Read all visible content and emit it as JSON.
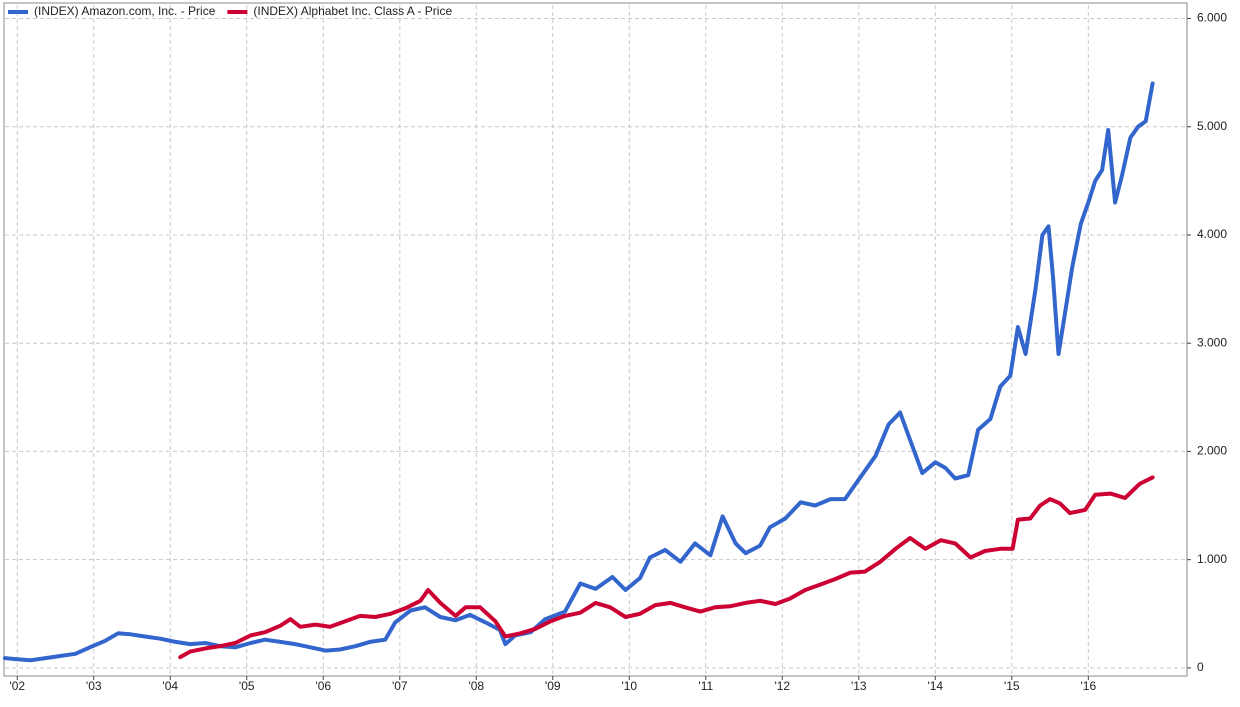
{
  "chart_data": {
    "type": "line",
    "xlim": [
      2001.84,
      2017.29
    ],
    "xticks": [
      {
        "value": 2002,
        "label": "'02"
      },
      {
        "value": 2003,
        "label": "'03"
      },
      {
        "value": 2004,
        "label": "'04"
      },
      {
        "value": 2005,
        "label": "'05"
      },
      {
        "value": 2006,
        "label": "'06"
      },
      {
        "value": 2007,
        "label": "'07"
      },
      {
        "value": 2008,
        "label": "'08"
      },
      {
        "value": 2009,
        "label": "'09"
      },
      {
        "value": 2010,
        "label": "'10"
      },
      {
        "value": 2011,
        "label": "'11"
      },
      {
        "value": 2012,
        "label": "'12"
      },
      {
        "value": 2013,
        "label": "'13"
      },
      {
        "value": 2014,
        "label": "'14"
      },
      {
        "value": 2015,
        "label": "'15"
      },
      {
        "value": 2016,
        "label": "'16"
      }
    ],
    "ylim": [
      -75,
      6125
    ],
    "yticks": [
      0,
      {
        "value": 1000,
        "label": "1.000"
      },
      {
        "value": 2000,
        "label": "2.000"
      },
      {
        "value": 3000,
        "label": "3.000"
      },
      {
        "value": 4000,
        "label": "4.000"
      },
      {
        "value": 5000,
        "label": "5.000"
      },
      {
        "value": 6000,
        "label": "6.000"
      }
    ],
    "grid": true,
    "legend": "top-left",
    "series": [
      {
        "name": "(INDEX) Amazon.com, Inc. - Price",
        "color": "#3366cc",
        "x": [
          2001.84,
          2002.0,
          2002.17,
          2002.37,
          2002.56,
          2002.76,
          2002.95,
          2003.15,
          2003.32,
          2003.48,
          2003.67,
          2003.87,
          2004.07,
          2004.26,
          2004.46,
          2004.65,
          2004.85,
          2005.05,
          2005.24,
          2005.44,
          2005.63,
          2005.83,
          2006.03,
          2006.22,
          2006.42,
          2006.61,
          2006.81,
          2006.94,
          2007.14,
          2007.33,
          2007.53,
          2007.73,
          2007.92,
          2008.12,
          2008.31,
          2008.38,
          2008.51,
          2008.71,
          2008.9,
          2009.16,
          2009.36,
          2009.56,
          2009.78,
          2009.95,
          2010.14,
          2010.27,
          2010.47,
          2010.67,
          2010.86,
          2011.06,
          2011.22,
          2011.39,
          2011.52,
          2011.71,
          2011.84,
          2012.04,
          2012.24,
          2012.43,
          2012.63,
          2012.82,
          2013.02,
          2013.22,
          2013.39,
          2013.54,
          2013.7,
          2013.83,
          2014.0,
          2014.13,
          2014.26,
          2014.43,
          2014.56,
          2014.72,
          2014.85,
          2014.98,
          2015.08,
          2015.18,
          2015.31,
          2015.4,
          2015.48,
          2015.54,
          2015.61,
          2015.7,
          2015.79,
          2015.9,
          2016.0,
          2016.09,
          2016.18,
          2016.26,
          2016.35,
          2016.44,
          2016.55,
          2016.65,
          2016.75,
          2016.84
        ],
        "values": [
          90,
          80,
          70,
          90,
          110,
          130,
          190,
          250,
          320,
          310,
          290,
          270,
          240,
          220,
          230,
          200,
          190,
          230,
          260,
          240,
          220,
          190,
          160,
          170,
          200,
          240,
          260,
          420,
          530,
          560,
          470,
          440,
          490,
          420,
          350,
          220,
          300,
          330,
          450,
          520,
          780,
          730,
          840,
          720,
          830,
          1020,
          1090,
          980,
          1150,
          1040,
          1400,
          1150,
          1060,
          1130,
          1300,
          1380,
          1530,
          1500,
          1560,
          1560,
          1760,
          1960,
          2250,
          2360,
          2050,
          1800,
          1900,
          1850,
          1750,
          1780,
          2200,
          2300,
          2600,
          2700,
          3150,
          2900,
          3500,
          4000,
          4080,
          3600,
          2900,
          3300,
          3700,
          4100,
          4300,
          4500,
          4600,
          4970,
          4300,
          4550,
          4900,
          5000,
          5050,
          5400
        ]
      },
      {
        "name": "(INDEX) Alphabet Inc. Class A - Price",
        "color": "#cc0033",
        "x": [
          2004.13,
          2004.26,
          2004.46,
          2004.65,
          2004.85,
          2005.05,
          2005.24,
          2005.44,
          2005.57,
          2005.7,
          2005.9,
          2006.09,
          2006.29,
          2006.48,
          2006.68,
          2006.88,
          2007.07,
          2007.27,
          2007.37,
          2007.53,
          2007.73,
          2007.86,
          2008.05,
          2008.25,
          2008.38,
          2008.58,
          2008.77,
          2008.97,
          2009.16,
          2009.36,
          2009.56,
          2009.75,
          2009.95,
          2010.14,
          2010.34,
          2010.54,
          2010.73,
          2010.93,
          2011.12,
          2011.32,
          2011.52,
          2011.71,
          2011.91,
          2012.1,
          2012.3,
          2012.5,
          2012.69,
          2012.89,
          2013.08,
          2013.28,
          2013.48,
          2013.67,
          2013.87,
          2014.07,
          2014.26,
          2014.46,
          2014.65,
          2014.85,
          2015.01,
          2015.08,
          2015.24,
          2015.37,
          2015.5,
          2015.63,
          2015.76,
          2015.96,
          2016.09,
          2016.29,
          2016.48,
          2016.67,
          2016.84
        ],
        "values": [
          100,
          150,
          180,
          200,
          230,
          300,
          330,
          390,
          450,
          380,
          400,
          380,
          430,
          480,
          470,
          500,
          550,
          620,
          720,
          600,
          480,
          560,
          560,
          430,
          290,
          320,
          360,
          430,
          480,
          510,
          600,
          560,
          470,
          500,
          580,
          600,
          560,
          520,
          560,
          570,
          600,
          620,
          590,
          640,
          720,
          770,
          820,
          880,
          890,
          980,
          1100,
          1200,
          1100,
          1180,
          1150,
          1020,
          1080,
          1100,
          1100,
          1370,
          1380,
          1500,
          1560,
          1520,
          1430,
          1460,
          1600,
          1610,
          1570,
          1700,
          1760
        ]
      }
    ]
  }
}
